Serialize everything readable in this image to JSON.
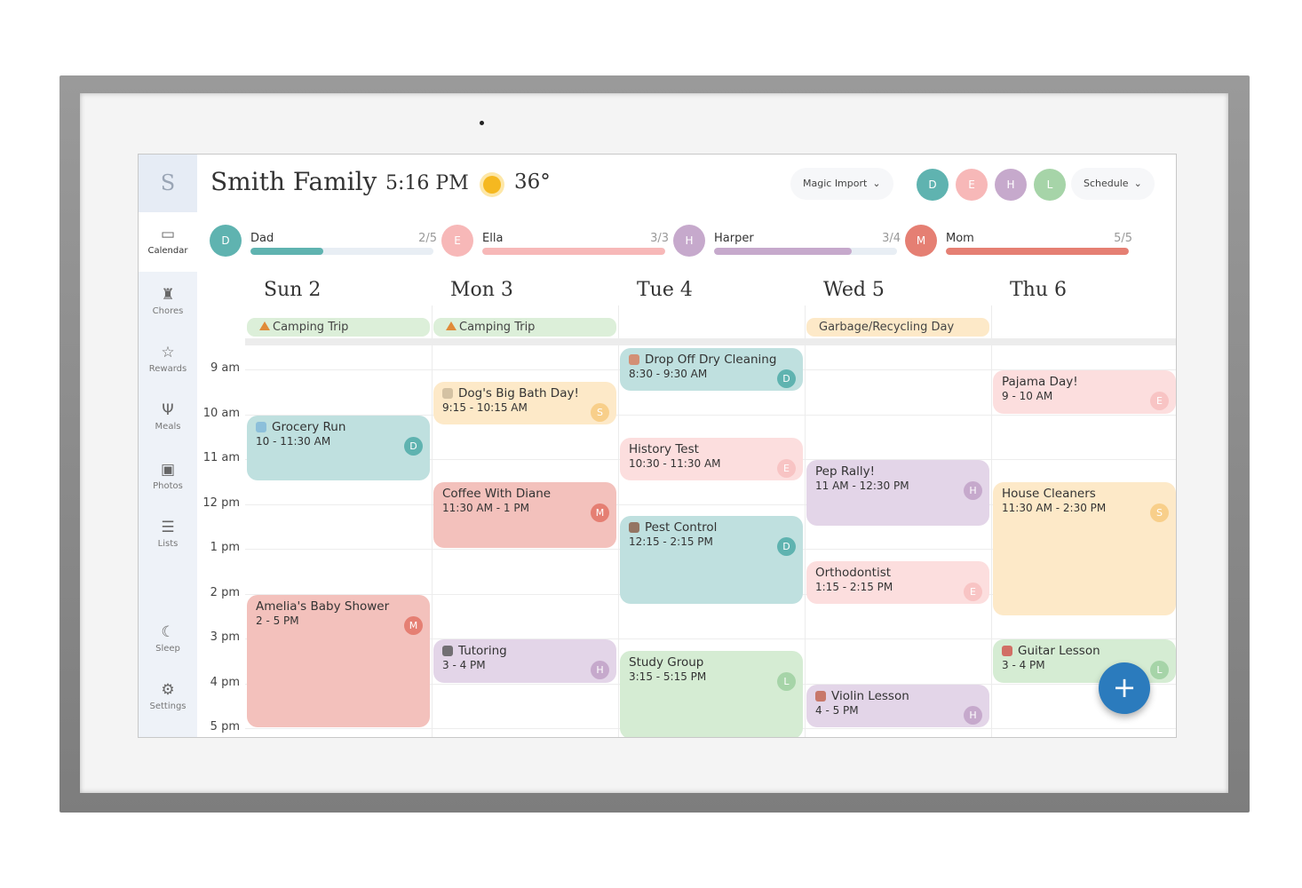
{
  "header": {
    "logo": "S",
    "title": "Smith Family",
    "time": "5:16 PM",
    "weather_icon": "sun-icon",
    "temperature": "36°",
    "magic_import": "Magic Import",
    "schedule": "Schedule"
  },
  "header_avatars": [
    {
      "initial": "D",
      "color": "#5fb3b0"
    },
    {
      "initial": "E",
      "color": "#f7b8b8"
    },
    {
      "initial": "H",
      "color": "#c6a9cc"
    },
    {
      "initial": "L",
      "color": "#a6d4a8"
    }
  ],
  "sidebar": [
    {
      "label": "Calendar",
      "icon": "calendar-icon",
      "glyph": "▭",
      "active": true
    },
    {
      "label": "Chores",
      "icon": "broom-icon",
      "glyph": "♜"
    },
    {
      "label": "Rewards",
      "icon": "star-icon",
      "glyph": "☆"
    },
    {
      "label": "Meals",
      "icon": "utensils-icon",
      "glyph": "Ψ"
    },
    {
      "label": "Photos",
      "icon": "photo-icon",
      "glyph": "▣"
    },
    {
      "label": "Lists",
      "icon": "list-icon",
      "glyph": "☰"
    },
    {
      "label": "Sleep",
      "icon": "moon-icon",
      "glyph": "☾"
    },
    {
      "label": "Settings",
      "icon": "gear-icon",
      "glyph": "⚙"
    }
  ],
  "members": [
    {
      "initial": "D",
      "name": "Dad",
      "progress": "2/5",
      "done": 2,
      "total": 5,
      "color": "#5fb3b0"
    },
    {
      "initial": "E",
      "name": "Ella",
      "progress": "3/3",
      "done": 3,
      "total": 3,
      "color": "#f7b8b8"
    },
    {
      "initial": "H",
      "name": "Harper",
      "progress": "3/4",
      "done": 3,
      "total": 4,
      "color": "#c6a9cc"
    },
    {
      "initial": "M",
      "name": "Mom",
      "progress": "5/5",
      "done": 5,
      "total": 5,
      "color": "#e57f73"
    }
  ],
  "days": [
    "Sun 2",
    "Mon 3",
    "Tue 4",
    "Wed 5",
    "Thu 6"
  ],
  "all_day": [
    {
      "day": 0,
      "label": "Camping Trip",
      "icon": "tent-icon",
      "color": "#dcefd9"
    },
    {
      "day": 1,
      "label": "Camping Trip",
      "icon": "tent-icon",
      "color": "#dcefd9"
    },
    {
      "day": 3,
      "label": "Garbage/Recycling Day",
      "color": "#fde9c8"
    }
  ],
  "hours": [
    "9 am",
    "10 am",
    "11 am",
    "12 pm",
    "1 pm",
    "2 pm",
    "3 pm",
    "4 pm",
    "5 pm"
  ],
  "owner_colors": {
    "D": {
      "bg": "#bfe0df",
      "badge": "#5fb3b0"
    },
    "E": {
      "bg": "#fcdede",
      "badge": "#f8c4c4"
    },
    "H": {
      "bg": "#e3d5e8",
      "badge": "#c6a9cc"
    },
    "L": {
      "bg": "#d5ecd3",
      "badge": "#a6d4a8"
    },
    "M": {
      "bg": "#f3c1bc",
      "badge": "#e57f73"
    },
    "S": {
      "bg": "#fde9c8",
      "badge": "#f8cf8a"
    }
  },
  "events": [
    {
      "day": 0,
      "title": "Grocery Run",
      "time": "10 - 11:30 AM",
      "owner": "D",
      "icon": "cart-icon"
    },
    {
      "day": 0,
      "title": "Amelia's Baby Shower",
      "time": "2 - 5 PM",
      "owner": "M"
    },
    {
      "day": 1,
      "title": "Dog's Big Bath Day!",
      "time": "9:15 - 10:15 AM",
      "owner": "S",
      "icon": "dog-bath-icon"
    },
    {
      "day": 1,
      "title": "Coffee With Diane",
      "time": "11:30 AM - 1 PM",
      "owner": "M"
    },
    {
      "day": 1,
      "title": "Tutoring",
      "time": "3 - 4 PM",
      "owner": "H",
      "icon": "notebook-icon"
    },
    {
      "day": 2,
      "title": "Drop Off Dry Cleaning",
      "time": "8:30 - 9:30 AM",
      "owner": "D",
      "icon": "necktie-icon"
    },
    {
      "day": 2,
      "title": "History Test",
      "time": "10:30 - 11:30 AM",
      "owner": "E"
    },
    {
      "day": 2,
      "title": "Pest Control",
      "time": "12:15 - 2:15 PM",
      "owner": "D",
      "icon": "bug-icon"
    },
    {
      "day": 2,
      "title": "Study Group",
      "time": "3:15 - 5:15 PM",
      "owner": "L"
    },
    {
      "day": 3,
      "title": "Pep Rally!",
      "time": "11 AM - 12:30 PM",
      "owner": "H"
    },
    {
      "day": 3,
      "title": "Orthodontist",
      "time": "1:15 - 2:15 PM",
      "owner": "E"
    },
    {
      "day": 3,
      "title": "Violin Lesson",
      "time": "4 - 5 PM",
      "owner": "H",
      "icon": "violin-icon"
    },
    {
      "day": 4,
      "title": "Pajama Day!",
      "time": "9 - 10 AM",
      "owner": "E"
    },
    {
      "day": 4,
      "title": "House Cleaners",
      "time": "11:30 AM - 2:30 PM",
      "owner": "S"
    },
    {
      "day": 4,
      "title": "Guitar Lesson",
      "time": "3 - 4 PM",
      "owner": "L",
      "icon": "guitar-icon"
    }
  ],
  "fab": {
    "label": "+",
    "icon": "plus-icon"
  }
}
